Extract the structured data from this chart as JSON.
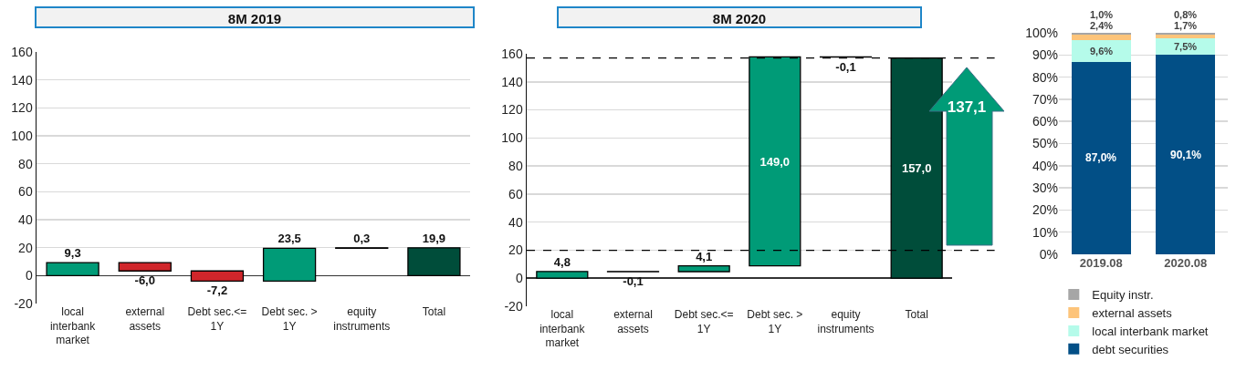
{
  "chart_data": [
    {
      "type": "bar",
      "title": "8M 2019",
      "categories": [
        "local interbank market",
        "external assets",
        "Debt sec.<= 1Y",
        "Debt sec. > 1Y",
        "equity instruments",
        "Total"
      ],
      "values": [
        9.3,
        -6.0,
        -7.2,
        23.5,
        0.3,
        19.9
      ],
      "base": [
        0,
        9.3,
        3.3,
        -3.9,
        19.6,
        0
      ],
      "colors": [
        "#009b77",
        "#d0262b",
        "#d0262b",
        "#009b77",
        "#000000",
        "#004d3a"
      ],
      "value_labels": [
        "9,3",
        "-6,0",
        "-7,2",
        "23,5",
        "0,3",
        "19,9"
      ],
      "ylim": [
        -20,
        160
      ],
      "yticks": [
        -20,
        0,
        20,
        40,
        60,
        80,
        100,
        120,
        140,
        160
      ],
      "grid": "y"
    },
    {
      "type": "bar",
      "title": "8M 2020",
      "categories": [
        "local interbank market",
        "external assets",
        "Debt sec.<= 1Y",
        "Debt sec. > 1Y",
        "equity instruments",
        "Total"
      ],
      "values": [
        4.8,
        -0.1,
        4.1,
        149.0,
        -0.1,
        157.0
      ],
      "base": [
        0,
        4.8,
        4.7,
        8.8,
        157.8,
        0
      ],
      "colors": [
        "#009b77",
        "#000000",
        "#009b77",
        "#009b77",
        "#000000",
        "#004d3a"
      ],
      "value_labels": [
        "4,8",
        "-0,1",
        "4,1",
        "149,0",
        "-0,1",
        "157,0"
      ],
      "ylim": [
        -20,
        160
      ],
      "yticks": [
        -20,
        0,
        20,
        40,
        60,
        80,
        100,
        120,
        140,
        160
      ],
      "grid": "y",
      "ref_lines": [
        {
          "axis": "y",
          "value": 19.9,
          "color": "#000000",
          "line_style": "dashed"
        },
        {
          "axis": "y",
          "value": 157.0,
          "color": "#000000",
          "line_style": "dashed"
        }
      ],
      "annotations": [
        "137,1"
      ]
    },
    {
      "type": "bar",
      "categories": [
        "2019.08",
        "2020.08"
      ],
      "stacked": true,
      "series": [
        {
          "name": "debt securities",
          "color": "#024f86",
          "values": [
            87.0,
            90.1
          ],
          "value_labels": [
            "87,0%",
            "90,1%"
          ]
        },
        {
          "name": "local interbank market",
          "color": "#b5fbea",
          "values": [
            9.6,
            7.5
          ],
          "value_labels": [
            "9,6%",
            "7,5%"
          ]
        },
        {
          "name": "external assets",
          "color": "#fdc47a",
          "values": [
            2.4,
            1.7
          ],
          "value_labels": [
            "2,4%",
            "1,7%"
          ]
        },
        {
          "name": "Equity instr.",
          "color": "#a6a6a6",
          "values": [
            1.0,
            0.8
          ],
          "value_labels": [
            "1,0%",
            "0,8%"
          ]
        }
      ],
      "ylim": [
        0,
        100
      ],
      "yticks": [
        {
          "value": 0,
          "label": "0%"
        },
        {
          "value": 10,
          "label": "10%"
        },
        {
          "value": 20,
          "label": "20%"
        },
        {
          "value": 30,
          "label": "30%"
        },
        {
          "value": 40,
          "label": "40%"
        },
        {
          "value": 50,
          "label": "50%"
        },
        {
          "value": 60,
          "label": "60%"
        },
        {
          "value": 70,
          "label": "70%"
        },
        {
          "value": 80,
          "label": "80%"
        },
        {
          "value": 90,
          "label": "90%"
        },
        {
          "value": 100,
          "label": "100%"
        }
      ],
      "grid": "y",
      "legend": "bottom"
    }
  ]
}
